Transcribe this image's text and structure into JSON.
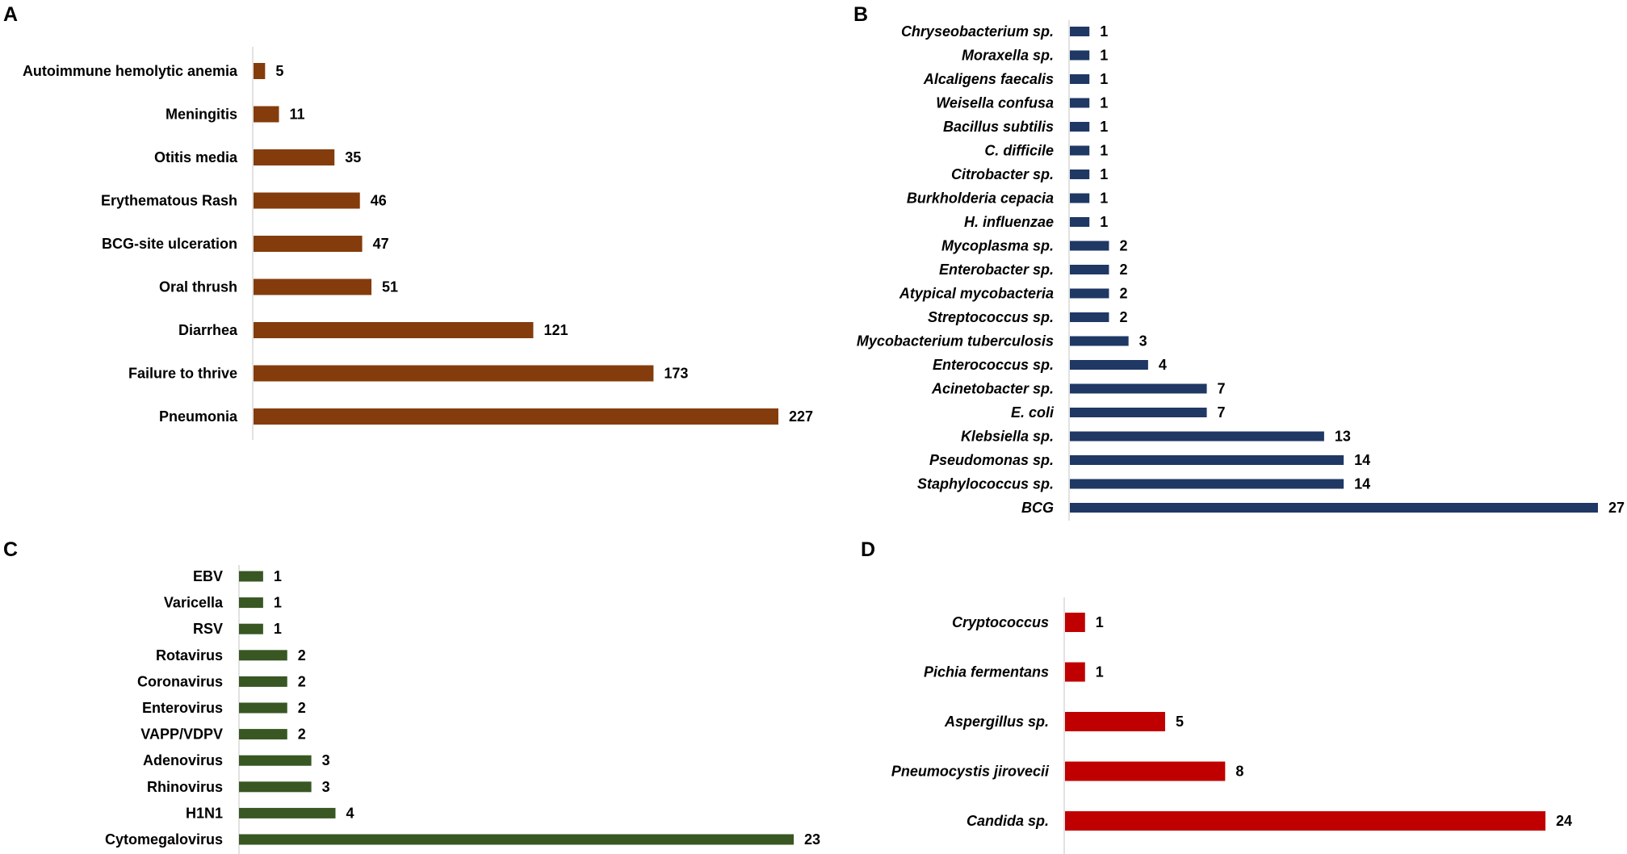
{
  "chart_data": [
    {
      "panel": "A",
      "type": "bar",
      "orientation": "horizontal",
      "color": "#843c0c",
      "italic_labels": false,
      "categories": [
        "Autoimmune hemolytic anemia",
        "Meningitis",
        "Otitis media",
        "Erythematous Rash",
        "BCG-site ulceration",
        "Oral thrush",
        "Diarrhea",
        "Failure to thrive",
        "Pneumonia"
      ],
      "values": [
        5,
        11,
        35,
        46,
        47,
        51,
        121,
        173,
        227
      ],
      "xlim": [
        0,
        227
      ]
    },
    {
      "panel": "B",
      "type": "bar",
      "orientation": "horizontal",
      "color": "#1f3864",
      "italic_labels": true,
      "categories": [
        "Chryseobacterium sp.",
        "Moraxella sp.",
        "Alcaligens faecalis",
        "Weisella confusa",
        "Bacillus subtilis",
        "C. difficile",
        "Citrobacter sp.",
        "Burkholderia cepacia",
        "H. influenzae",
        "Mycoplasma sp.",
        "Enterobacter sp.",
        "Atypical mycobacteria",
        "Streptococcus sp.",
        "Mycobacterium tuberculosis",
        "Enterococcus sp.",
        "Acinetobacter sp.",
        "E. coli",
        "Klebsiella sp.",
        "Pseudomonas sp.",
        "Staphylococcus sp.",
        "BCG"
      ],
      "values": [
        1,
        1,
        1,
        1,
        1,
        1,
        1,
        1,
        1,
        2,
        2,
        2,
        2,
        3,
        4,
        7,
        7,
        13,
        14,
        14,
        27
      ],
      "xlim": [
        0,
        27
      ]
    },
    {
      "panel": "C",
      "type": "bar",
      "orientation": "horizontal",
      "color": "#385723",
      "italic_labels": false,
      "categories": [
        "EBV",
        "Varicella",
        "RSV",
        "Rotavirus",
        "Coronavirus",
        "Enterovirus",
        "VAPP/VDPV",
        "Adenovirus",
        "Rhinovirus",
        "H1N1",
        "Cytomegalovirus"
      ],
      "values": [
        1,
        1,
        1,
        2,
        2,
        2,
        2,
        3,
        3,
        4,
        23
      ],
      "xlim": [
        0,
        23
      ]
    },
    {
      "panel": "D",
      "type": "bar",
      "orientation": "horizontal",
      "color": "#c00000",
      "italic_labels": true,
      "categories": [
        "Cryptococcus",
        "Pichia fermentans",
        "Aspergillus sp.",
        "Pneumocystis jirovecii",
        "Candida sp."
      ],
      "values": [
        1,
        1,
        5,
        8,
        24
      ],
      "xlim": [
        0,
        24
      ]
    }
  ]
}
